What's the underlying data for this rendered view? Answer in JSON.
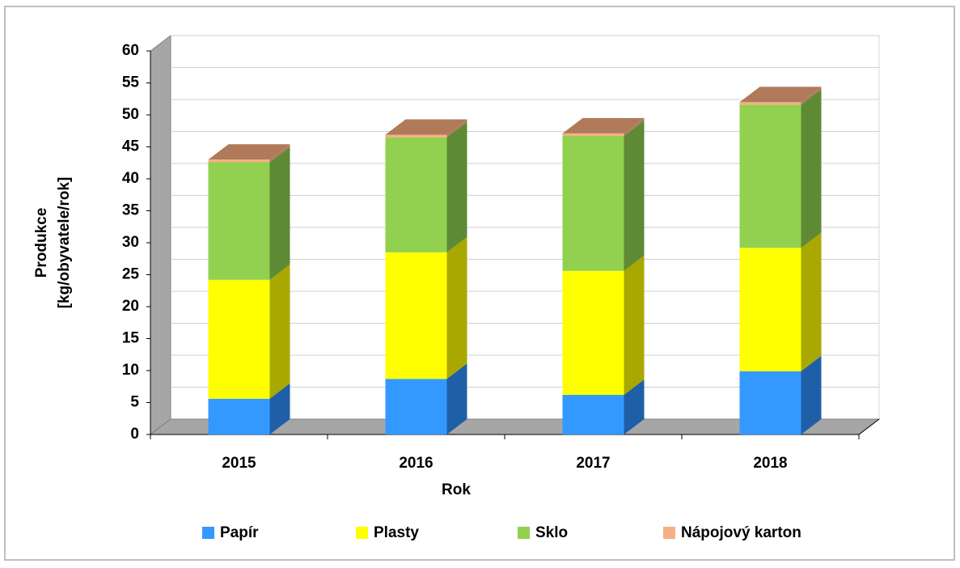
{
  "chart_data": {
    "type": "bar3d_stacked",
    "categories": [
      "2015",
      "2016",
      "2017",
      "2018"
    ],
    "series": [
      {
        "name": "Papír",
        "color": "#3399ff",
        "side_color": "#1f5fa8",
        "values": [
          5.6,
          8.7,
          6.2,
          9.9
        ]
      },
      {
        "name": "Plasty",
        "color": "#ffff00",
        "side_color": "#a8a800",
        "values": [
          18.6,
          19.8,
          19.4,
          19.3
        ]
      },
      {
        "name": "Sklo",
        "color": "#92d050",
        "side_color": "#5f8a35",
        "values": [
          18.4,
          18.0,
          21.1,
          22.4
        ]
      },
      {
        "name": "Nápojový karton",
        "color": "#f4b183",
        "side_color": "#b07a5a",
        "values": [
          0.4,
          0.4,
          0.4,
          0.4
        ]
      }
    ],
    "ylim": [
      0,
      60
    ],
    "yticks": [
      0,
      5,
      10,
      15,
      20,
      25,
      30,
      35,
      40,
      45,
      50,
      55,
      60
    ],
    "xlabel": "Rok",
    "ylabel": [
      "Produkce",
      "[kg/obyvatele/rok]"
    ],
    "grid": true
  }
}
